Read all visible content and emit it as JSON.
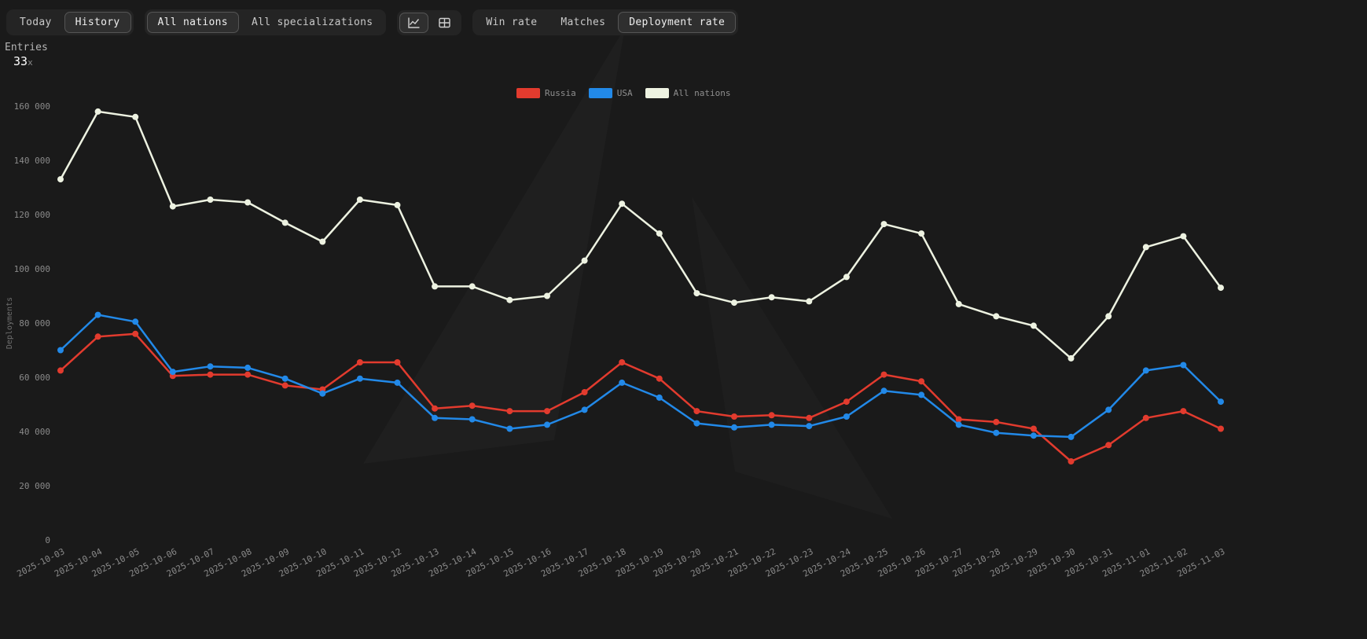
{
  "toolbar": {
    "time_toggle": {
      "items": [
        {
          "label": "Today",
          "selected": false
        },
        {
          "label": "History",
          "selected": true
        }
      ]
    },
    "filter_toggle": {
      "items": [
        {
          "label": "All nations",
          "selected": true
        },
        {
          "label": "All specializations",
          "selected": false
        }
      ]
    },
    "view_toggle": {
      "items": [
        {
          "icon": "line-chart-icon",
          "selected": true
        },
        {
          "icon": "table-icon",
          "selected": false
        }
      ]
    },
    "metric_toggle": {
      "items": [
        {
          "label": "Win rate",
          "selected": false
        },
        {
          "label": "Matches",
          "selected": false
        },
        {
          "label": "Deployment rate",
          "selected": true
        }
      ]
    }
  },
  "entries": {
    "label": "Entries",
    "value": "33",
    "suffix": "x"
  },
  "colors": {
    "background": "#1a1a1a",
    "russia": "#e23b2e",
    "usa": "#2289e8",
    "all_nations": "#edf2e1",
    "axis_text": "#8a8a8a"
  },
  "chart_data": {
    "type": "line",
    "title": "",
    "xlabel": "",
    "ylabel": "Deployments",
    "ylim": [
      0,
      160000
    ],
    "ytick_step": 20000,
    "grid": false,
    "legend_position": "top-center",
    "x": [
      "2025-10-03",
      "2025-10-04",
      "2025-10-05",
      "2025-10-06",
      "2025-10-07",
      "2025-10-08",
      "2025-10-09",
      "2025-10-10",
      "2025-10-11",
      "2025-10-12",
      "2025-10-13",
      "2025-10-14",
      "2025-10-15",
      "2025-10-16",
      "2025-10-17",
      "2025-10-18",
      "2025-10-19",
      "2025-10-20",
      "2025-10-21",
      "2025-10-22",
      "2025-10-23",
      "2025-10-24",
      "2025-10-25",
      "2025-10-26",
      "2025-10-27",
      "2025-10-28",
      "2025-10-29",
      "2025-10-30",
      "2025-10-31",
      "2025-11-01",
      "2025-11-02",
      "2025-11-03"
    ],
    "series": [
      {
        "name": "Russia",
        "color": "#e23b2e",
        "values": [
          62500,
          75000,
          76000,
          60500,
          61000,
          61000,
          57000,
          55500,
          65500,
          65500,
          48500,
          49500,
          47500,
          47500,
          54500,
          65500,
          59500,
          47500,
          45500,
          46000,
          45000,
          51000,
          61000,
          58500,
          44500,
          43500,
          41000,
          29000,
          35000,
          45000,
          47500,
          41000
        ]
      },
      {
        "name": "USA",
        "color": "#2289e8",
        "values": [
          70000,
          83000,
          80500,
          62000,
          64000,
          63500,
          59500,
          54000,
          59500,
          58000,
          45000,
          44500,
          41000,
          42500,
          48000,
          58000,
          52500,
          43000,
          41500,
          42500,
          42000,
          45500,
          55000,
          53500,
          42500,
          39500,
          38500,
          38000,
          48000,
          62500,
          64500,
          51000
        ]
      },
      {
        "name": "All nations",
        "color": "#edf2e1",
        "values": [
          133000,
          158000,
          156000,
          123000,
          125500,
          124500,
          117000,
          110000,
          125500,
          123500,
          93500,
          93500,
          88500,
          90000,
          103000,
          124000,
          113000,
          91000,
          87500,
          89500,
          88000,
          97000,
          116500,
          113000,
          87000,
          82500,
          79000,
          67000,
          82500,
          108000,
          112000,
          93000
        ]
      }
    ]
  }
}
